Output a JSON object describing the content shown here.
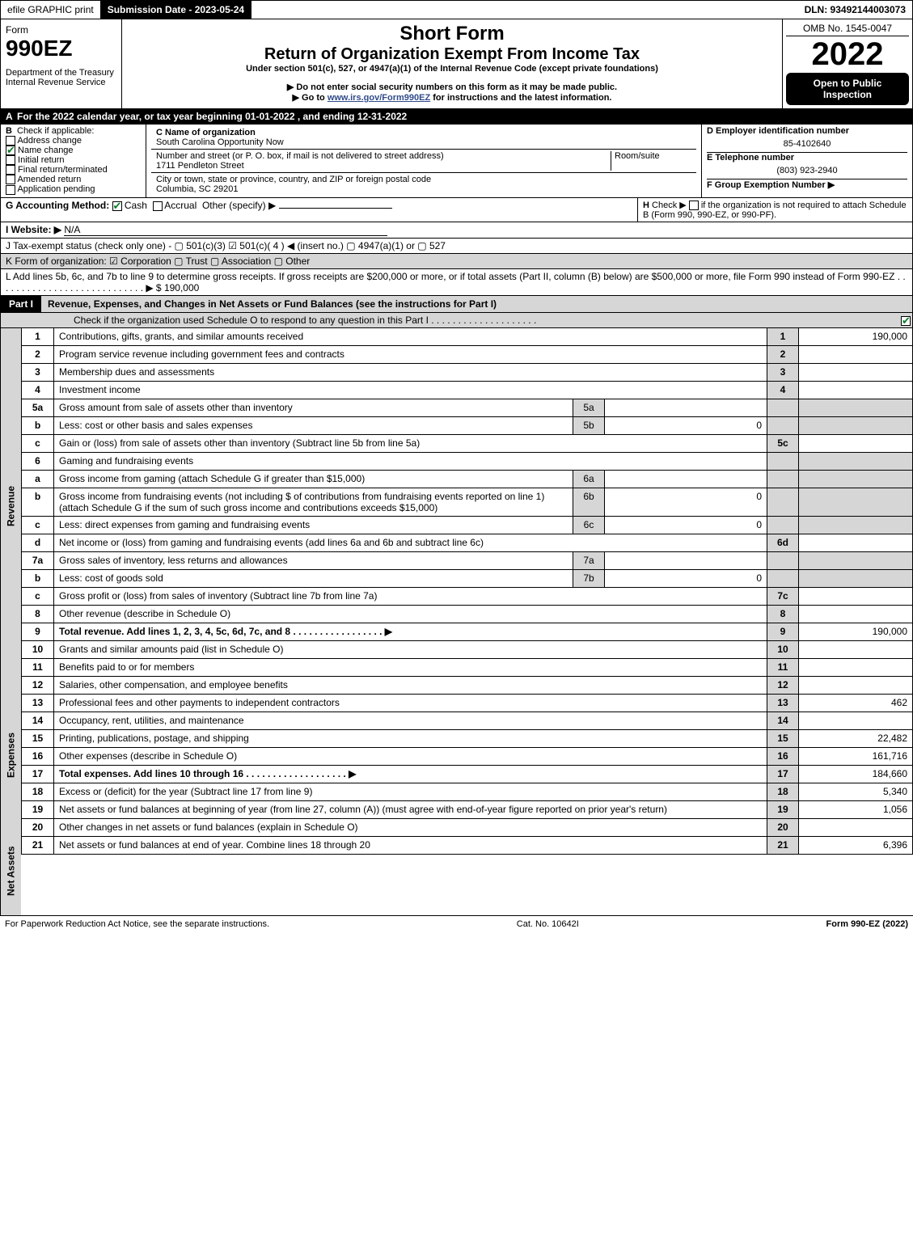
{
  "top": {
    "efile": "efile GRAPHIC print",
    "submission": "Submission Date - 2023-05-24",
    "dln": "DLN: 93492144003073"
  },
  "header": {
    "form_label": "Form",
    "form_num": "990EZ",
    "dept": "Department of the Treasury\nInternal Revenue Service",
    "short_form": "Short Form",
    "title": "Return of Organization Exempt From Income Tax",
    "under": "Under section 501(c), 527, or 4947(a)(1) of the Internal Revenue Code (except private foundations)",
    "note1": "▶ Do not enter social security numbers on this form as it may be made public.",
    "note2_pre": "▶ Go to ",
    "note2_link": "www.irs.gov/Form990EZ",
    "note2_post": " for instructions and the latest information.",
    "omb": "OMB No. 1545-0047",
    "year": "2022",
    "open": "Open to Public Inspection"
  },
  "A": "For the 2022 calendar year, or tax year beginning 01-01-2022 , and ending 12-31-2022",
  "B": {
    "label": "Check if applicable:",
    "items": [
      "Address change",
      "Name change",
      "Initial return",
      "Final return/terminated",
      "Amended return",
      "Application pending"
    ],
    "checked": [
      false,
      true,
      false,
      false,
      false,
      false
    ]
  },
  "C": {
    "name_lbl": "C Name of organization",
    "name": "South Carolina Opportunity Now",
    "addr_lbl": "Number and street (or P. O. box, if mail is not delivered to street address)",
    "room_lbl": "Room/suite",
    "addr": "1711 Pendleton Street",
    "city_lbl": "City or town, state or province, country, and ZIP or foreign postal code",
    "city": "Columbia, SC  29201"
  },
  "D": {
    "lbl": "D Employer identification number",
    "val": "85-4102640"
  },
  "E": {
    "lbl": "E Telephone number",
    "val": "(803) 923-2940"
  },
  "F": {
    "lbl": "F Group Exemption Number  ▶",
    "val": ""
  },
  "G": {
    "lbl": "G Accounting Method:",
    "cash": "Cash",
    "accrual": "Accrual",
    "other": "Other (specify) ▶"
  },
  "H": {
    "txt": "Check ▶  ",
    "note": "if the organization is not required to attach Schedule B (Form 990, 990-EZ, or 990-PF)."
  },
  "I": {
    "lbl": "I Website: ▶",
    "val": "N/A"
  },
  "J": {
    "txt": "J Tax-exempt status (check only one) -  ▢ 501(c)(3)  ☑ 501(c)( 4 ) ◀ (insert no.)  ▢ 4947(a)(1) or  ▢ 527"
  },
  "K": {
    "txt": "K Form of organization:  ☑ Corporation  ▢ Trust  ▢ Association  ▢ Other"
  },
  "L": {
    "txt": "L Add lines 5b, 6c, and 7b to line 9 to determine gross receipts. If gross receipts are $200,000 or more, or if total assets (Part II, column (B) below) are $500,000 or more, file Form 990 instead of Form 990-EZ  .  .  .  .  .  .  .  .  .  .  .  .  .  .  .  .  .  .  .  .  .  .  .  .  .  .  .  .  ▶ $",
    "val": "190,000"
  },
  "partI": {
    "label": "Part I",
    "title": "Revenue, Expenses, and Changes in Net Assets or Fund Balances (see the instructions for Part I)",
    "sub": "Check if the organization used Schedule O to respond to any question in this Part I  .  .  .  .  .  .  .  .  .  .  .  .  .  .  .  .  .  .  .  ."
  },
  "sections": {
    "revenue": "Revenue",
    "expenses": "Expenses",
    "netassets": "Net Assets"
  },
  "lines": {
    "1": {
      "n": "1",
      "d": "Contributions, gifts, grants, and similar amounts received",
      "r": "1",
      "v": "190,000"
    },
    "2": {
      "n": "2",
      "d": "Program service revenue including government fees and contracts",
      "r": "2",
      "v": ""
    },
    "3": {
      "n": "3",
      "d": "Membership dues and assessments",
      "r": "3",
      "v": ""
    },
    "4": {
      "n": "4",
      "d": "Investment income",
      "r": "4",
      "v": ""
    },
    "5a": {
      "n": "5a",
      "d": "Gross amount from sale of assets other than inventory",
      "sb": "5a",
      "sv": ""
    },
    "5b": {
      "n": "b",
      "d": "Less: cost or other basis and sales expenses",
      "sb": "5b",
      "sv": "0"
    },
    "5c": {
      "n": "c",
      "d": "Gain or (loss) from sale of assets other than inventory (Subtract line 5b from line 5a)",
      "r": "5c",
      "v": ""
    },
    "6": {
      "n": "6",
      "d": "Gaming and fundraising events"
    },
    "6a": {
      "n": "a",
      "d": "Gross income from gaming (attach Schedule G if greater than $15,000)",
      "sb": "6a",
      "sv": ""
    },
    "6b": {
      "n": "b",
      "d": "Gross income from fundraising events (not including $                    of contributions from fundraising events reported on line 1) (attach Schedule G if the sum of such gross income and contributions exceeds $15,000)",
      "sb": "6b",
      "sv": "0"
    },
    "6c": {
      "n": "c",
      "d": "Less: direct expenses from gaming and fundraising events",
      "sb": "6c",
      "sv": "0"
    },
    "6d": {
      "n": "d",
      "d": "Net income or (loss) from gaming and fundraising events (add lines 6a and 6b and subtract line 6c)",
      "r": "6d",
      "v": ""
    },
    "7a": {
      "n": "7a",
      "d": "Gross sales of inventory, less returns and allowances",
      "sb": "7a",
      "sv": ""
    },
    "7b": {
      "n": "b",
      "d": "Less: cost of goods sold",
      "sb": "7b",
      "sv": "0"
    },
    "7c": {
      "n": "c",
      "d": "Gross profit or (loss) from sales of inventory (Subtract line 7b from line 7a)",
      "r": "7c",
      "v": ""
    },
    "8": {
      "n": "8",
      "d": "Other revenue (describe in Schedule O)",
      "r": "8",
      "v": ""
    },
    "9": {
      "n": "9",
      "d": "Total revenue. Add lines 1, 2, 3, 4, 5c, 6d, 7c, and 8  .  .  .  .  .  .  .  .  .  .  .  .  .  .  .  .  .  ▶",
      "r": "9",
      "v": "190,000",
      "bold": true
    },
    "10": {
      "n": "10",
      "d": "Grants and similar amounts paid (list in Schedule O)",
      "r": "10",
      "v": ""
    },
    "11": {
      "n": "11",
      "d": "Benefits paid to or for members",
      "r": "11",
      "v": ""
    },
    "12": {
      "n": "12",
      "d": "Salaries, other compensation, and employee benefits",
      "r": "12",
      "v": ""
    },
    "13": {
      "n": "13",
      "d": "Professional fees and other payments to independent contractors",
      "r": "13",
      "v": "462"
    },
    "14": {
      "n": "14",
      "d": "Occupancy, rent, utilities, and maintenance",
      "r": "14",
      "v": ""
    },
    "15": {
      "n": "15",
      "d": "Printing, publications, postage, and shipping",
      "r": "15",
      "v": "22,482"
    },
    "16": {
      "n": "16",
      "d": "Other expenses (describe in Schedule O)",
      "r": "16",
      "v": "161,716"
    },
    "17": {
      "n": "17",
      "d": "Total expenses. Add lines 10 through 16  .  .  .  .  .  .  .  .  .  .  .  .  .  .  .  .  .  .  .  ▶",
      "r": "17",
      "v": "184,660",
      "bold": true
    },
    "18": {
      "n": "18",
      "d": "Excess or (deficit) for the year (Subtract line 17 from line 9)",
      "r": "18",
      "v": "5,340"
    },
    "19": {
      "n": "19",
      "d": "Net assets or fund balances at beginning of year (from line 27, column (A)) (must agree with end-of-year figure reported on prior year's return)",
      "r": "19",
      "v": "1,056"
    },
    "20": {
      "n": "20",
      "d": "Other changes in net assets or fund balances (explain in Schedule O)",
      "r": "20",
      "v": ""
    },
    "21": {
      "n": "21",
      "d": "Net assets or fund balances at end of year. Combine lines 18 through 20",
      "r": "21",
      "v": "6,396"
    }
  },
  "footer": {
    "left": "For Paperwork Reduction Act Notice, see the separate instructions.",
    "mid": "Cat. No. 10642I",
    "right": "Form 990-EZ (2022)"
  }
}
